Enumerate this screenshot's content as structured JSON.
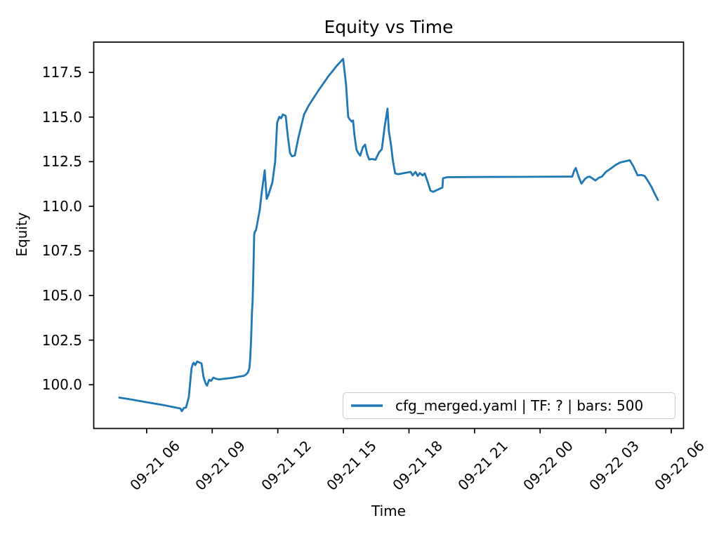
{
  "figure": {
    "title": "Equity vs Time",
    "xlabel": "Time",
    "ylabel": "Equity",
    "background": "#ffffff",
    "axis_color": "#000000",
    "legend_border_color": "#cccccc"
  },
  "legend": {
    "position": "lower right",
    "entries": [
      {
        "label": "cfg_merged.yaml | TF: ? | bars: 500",
        "color": "#1f77b4"
      }
    ]
  },
  "chart_data": {
    "type": "line",
    "title": "Equity vs Time",
    "xlabel": "Time",
    "ylabel": "Equity",
    "grid": false,
    "legend_position": "lower right",
    "x_unit": "hours since 09-21 00:00",
    "xlim": [
      3.58,
      30.56
    ],
    "ylim": [
      97.55,
      119.2
    ],
    "x_ticks": {
      "values": [
        6,
        9,
        12,
        15,
        18,
        21,
        24,
        27,
        30
      ],
      "labels": [
        "09-21 06",
        "09-21 09",
        "09-21 12",
        "09-21 15",
        "09-21 18",
        "09-21 21",
        "09-22 00",
        "09-22 03",
        "09-22 06"
      ]
    },
    "y_ticks": {
      "values": [
        100.0,
        102.5,
        105.0,
        107.5,
        110.0,
        112.5,
        115.0,
        117.5
      ],
      "labels": [
        "100.0",
        "102.5",
        "105.0",
        "107.5",
        "110.0",
        "112.5",
        "115.0",
        "117.5"
      ]
    },
    "series": [
      {
        "name": "cfg_merged.yaml | TF: ? | bars: 500",
        "color": "#1f77b4",
        "line_width": 2.8,
        "points": [
          [
            4.75,
            99.28
          ],
          [
            5.3,
            99.17
          ],
          [
            6.0,
            99.02
          ],
          [
            6.8,
            98.85
          ],
          [
            7.54,
            98.67
          ],
          [
            7.61,
            98.52
          ],
          [
            7.7,
            98.7
          ],
          [
            7.8,
            98.72
          ],
          [
            7.93,
            99.3
          ],
          [
            8.05,
            100.9
          ],
          [
            8.11,
            101.15
          ],
          [
            8.15,
            101.23
          ],
          [
            8.22,
            101.1
          ],
          [
            8.31,
            101.3
          ],
          [
            8.44,
            101.23
          ],
          [
            8.51,
            101.19
          ],
          [
            8.6,
            100.45
          ],
          [
            8.69,
            100.1
          ],
          [
            8.76,
            99.95
          ],
          [
            8.86,
            100.28
          ],
          [
            8.95,
            100.22
          ],
          [
            9.05,
            100.4
          ],
          [
            9.18,
            100.33
          ],
          [
            9.31,
            100.3
          ],
          [
            9.57,
            100.34
          ],
          [
            9.89,
            100.38
          ],
          [
            10.21,
            100.45
          ],
          [
            10.45,
            100.5
          ],
          [
            10.55,
            100.58
          ],
          [
            10.63,
            100.68
          ],
          [
            10.7,
            100.93
          ],
          [
            10.74,
            101.5
          ],
          [
            10.78,
            102.6
          ],
          [
            10.82,
            104.1
          ],
          [
            10.85,
            104.72
          ],
          [
            10.87,
            105.7
          ],
          [
            10.9,
            107.3
          ],
          [
            10.92,
            108.4
          ],
          [
            10.95,
            108.58
          ],
          [
            11.0,
            108.65
          ],
          [
            11.05,
            108.98
          ],
          [
            11.17,
            109.76
          ],
          [
            11.27,
            110.81
          ],
          [
            11.4,
            112.02
          ],
          [
            11.49,
            110.42
          ],
          [
            11.56,
            110.6
          ],
          [
            11.75,
            111.34
          ],
          [
            11.88,
            112.5
          ],
          [
            11.97,
            114.68
          ],
          [
            12.07,
            115.01
          ],
          [
            12.15,
            114.93
          ],
          [
            12.23,
            115.14
          ],
          [
            12.36,
            115.07
          ],
          [
            12.46,
            113.89
          ],
          [
            12.56,
            112.98
          ],
          [
            12.65,
            112.8
          ],
          [
            12.78,
            112.85
          ],
          [
            12.94,
            113.83
          ],
          [
            13.2,
            115.14
          ],
          [
            13.42,
            115.66
          ],
          [
            13.84,
            116.45
          ],
          [
            14.29,
            117.24
          ],
          [
            14.71,
            117.89
          ],
          [
            14.99,
            118.26
          ],
          [
            15.12,
            116.84
          ],
          [
            15.22,
            115.01
          ],
          [
            15.28,
            114.88
          ],
          [
            15.38,
            114.75
          ],
          [
            15.44,
            114.81
          ],
          [
            15.51,
            113.96
          ],
          [
            15.6,
            113.17
          ],
          [
            15.7,
            112.95
          ],
          [
            15.77,
            112.84
          ],
          [
            15.89,
            113.3
          ],
          [
            15.99,
            113.46
          ],
          [
            16.09,
            112.91
          ],
          [
            16.18,
            112.62
          ],
          [
            16.31,
            112.65
          ],
          [
            16.47,
            112.61
          ],
          [
            16.63,
            113.02
          ],
          [
            16.76,
            113.2
          ],
          [
            16.89,
            114.48
          ],
          [
            17.02,
            115.47
          ],
          [
            17.08,
            114.22
          ],
          [
            17.18,
            113.43
          ],
          [
            17.27,
            112.52
          ],
          [
            17.37,
            111.84
          ],
          [
            17.5,
            111.8
          ],
          [
            17.69,
            111.84
          ],
          [
            18.08,
            111.93
          ],
          [
            18.17,
            111.73
          ],
          [
            18.3,
            111.93
          ],
          [
            18.4,
            111.7
          ],
          [
            18.5,
            111.86
          ],
          [
            18.62,
            111.73
          ],
          [
            18.72,
            111.84
          ],
          [
            18.88,
            111.27
          ],
          [
            18.98,
            110.88
          ],
          [
            19.11,
            110.81
          ],
          [
            19.3,
            110.92
          ],
          [
            19.46,
            111.01
          ],
          [
            19.53,
            111.05
          ],
          [
            19.56,
            111.57
          ],
          [
            19.75,
            111.63
          ],
          [
            21.0,
            111.64
          ],
          [
            23.0,
            111.65
          ],
          [
            25.0,
            111.66
          ],
          [
            25.47,
            111.66
          ],
          [
            25.56,
            112.0
          ],
          [
            25.63,
            112.15
          ],
          [
            25.76,
            111.66
          ],
          [
            25.85,
            111.38
          ],
          [
            25.89,
            111.27
          ],
          [
            26.05,
            111.53
          ],
          [
            26.17,
            111.64
          ],
          [
            26.27,
            111.66
          ],
          [
            26.43,
            111.53
          ],
          [
            26.53,
            111.45
          ],
          [
            26.69,
            111.6
          ],
          [
            26.82,
            111.66
          ],
          [
            27.01,
            111.93
          ],
          [
            27.24,
            112.12
          ],
          [
            27.46,
            112.32
          ],
          [
            27.65,
            112.45
          ],
          [
            27.88,
            112.52
          ],
          [
            28.1,
            112.58
          ],
          [
            28.26,
            112.25
          ],
          [
            28.36,
            111.99
          ],
          [
            28.46,
            111.73
          ],
          [
            28.62,
            111.76
          ],
          [
            28.78,
            111.7
          ],
          [
            28.94,
            111.4
          ],
          [
            29.1,
            111.07
          ],
          [
            29.25,
            110.68
          ],
          [
            29.39,
            110.35
          ]
        ]
      }
    ]
  }
}
